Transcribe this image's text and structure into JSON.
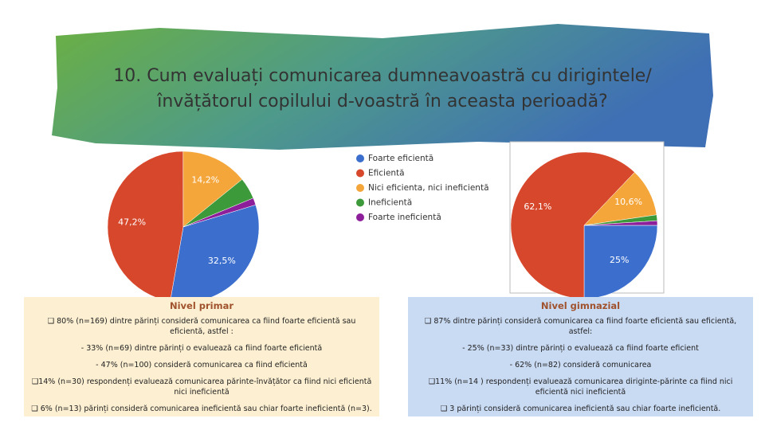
{
  "title": "10. Cum evaluați comunicarea dumneavoastră cu dirigintele/învățătorul copilului d-voastră în aceasta perioadă?",
  "chart_data": [
    {
      "type": "pie",
      "categories": [
        "Foarte eficientă",
        "Eficientă",
        "Nici eficienta, nici ineficientă",
        "Ineficientă",
        "Foarte ineficientă"
      ],
      "values": [
        32.5,
        47.2,
        14.2,
        4.6,
        1.5
      ],
      "value_labels": [
        "32,5%",
        "47,2%",
        "14,2%",
        null,
        null
      ],
      "colors": [
        "#3c6fcd",
        "#d6472b",
        "#f4a63a",
        "#3d9a3a",
        "#8e1f9b"
      ]
    },
    {
      "type": "pie",
      "values": [
        25,
        62.1,
        10.6,
        1.3,
        1.0
      ],
      "value_labels": [
        "25%",
        "62,1%",
        "10,6%",
        null,
        null
      ],
      "colors": [
        "#3c6fcd",
        "#d6472b",
        "#f4a63a",
        "#3d9a3a",
        "#8e1f9b"
      ]
    }
  ],
  "boxes": [
    {
      "heading": "Nivel primar",
      "lines": [
        "❑ 80% (n=169) dintre părinți consideră comunicarea ca fiind foarte eficientă sau eficientă, astfel :",
        "- 33% (n=69) dintre părinți o evaluează ca fiind foarte eficientă",
        "- 47% (n=100) consideră comunicarea ca fiind eficientă",
        "❑14% (n=30) respondenți evaluează comunicarea părinte-învățător ca fiind nici eficientă nici ineficientă",
        "❑ 6% (n=13) părinți consideră comunicarea ineficientă sau chiar foarte ineficientă (n=3)."
      ]
    },
    {
      "heading": "Nivel gimnazial",
      "lines": [
        "❑ 87% dintre părinți consideră comunicarea ca fiind foarte eficientă sau eficientă, astfel:",
        "- 25% (n=33) dintre părinți o evaluează ca fiind foarte eficient",
        "- 62% (n=82) consideră comunicarea",
        "❑11% (n=14 ) respondenți evaluează comunicarea diriginte-părinte ca fiind nici eficientă nici ineficientă",
        "❑ 3 părinți consideră comunicarea ineficientă sau chiar foarte ineficientă."
      ]
    }
  ]
}
